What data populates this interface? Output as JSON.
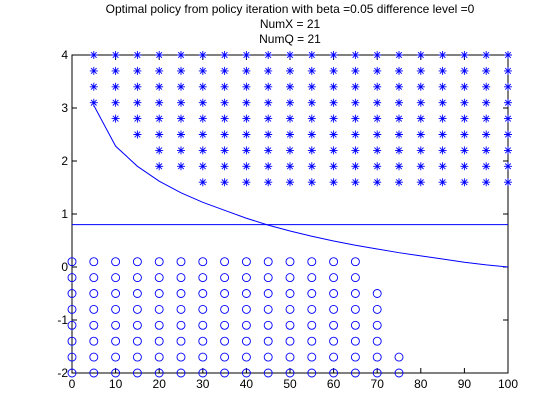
{
  "chart_data": {
    "type": "scatter",
    "title_lines": [
      "Optimal policy from policy iteration with beta =0.05 difference level =0",
      "NumX = 21",
      "NumQ = 21"
    ],
    "xlabel": "",
    "ylabel": "",
    "xlim": [
      0,
      100
    ],
    "ylim": [
      -2,
      4
    ],
    "x_ticks": [
      0,
      10,
      20,
      30,
      40,
      50,
      60,
      70,
      80,
      90,
      100
    ],
    "y_ticks": [
      -2,
      -1,
      0,
      1,
      2,
      3,
      4
    ],
    "grid": false,
    "legend": "none",
    "colors": {
      "series": "#0000ff",
      "axes": "#000000",
      "background": "#ffffff"
    },
    "star_series": {
      "marker": "asterisk",
      "columns": [
        {
          "x": 5,
          "y_min": 3.1,
          "y_max": 4.0
        },
        {
          "x": 10,
          "y_min": 2.8,
          "y_max": 4.0
        },
        {
          "x": 15,
          "y_min": 2.5,
          "y_max": 4.0
        },
        {
          "x": 20,
          "y_min": 1.9,
          "y_max": 4.0
        },
        {
          "x": 25,
          "y_min": 1.9,
          "y_max": 4.0
        },
        {
          "x": 30,
          "y_min": 1.6,
          "y_max": 4.0
        },
        {
          "x": 35,
          "y_min": 1.6,
          "y_max": 4.0
        },
        {
          "x": 40,
          "y_min": 1.6,
          "y_max": 4.0
        },
        {
          "x": 45,
          "y_min": 1.6,
          "y_max": 4.0
        },
        {
          "x": 50,
          "y_min": 1.6,
          "y_max": 4.0
        },
        {
          "x": 55,
          "y_min": 1.6,
          "y_max": 4.0
        },
        {
          "x": 60,
          "y_min": 1.6,
          "y_max": 4.0
        },
        {
          "x": 65,
          "y_min": 1.6,
          "y_max": 4.0
        },
        {
          "x": 70,
          "y_min": 1.6,
          "y_max": 4.0
        },
        {
          "x": 75,
          "y_min": 1.6,
          "y_max": 4.0
        },
        {
          "x": 80,
          "y_min": 1.6,
          "y_max": 4.0
        },
        {
          "x": 85,
          "y_min": 1.6,
          "y_max": 4.0
        },
        {
          "x": 90,
          "y_min": 1.6,
          "y_max": 4.0
        },
        {
          "x": 95,
          "y_min": 1.6,
          "y_max": 4.0
        },
        {
          "x": 100,
          "y_min": 1.6,
          "y_max": 4.0
        }
      ]
    },
    "circle_series": {
      "marker": "circle",
      "columns": [
        {
          "x": 0,
          "y_min": -2.0,
          "y_max": 0.1
        },
        {
          "x": 5,
          "y_min": -2.0,
          "y_max": 0.1
        },
        {
          "x": 10,
          "y_min": -2.0,
          "y_max": 0.1
        },
        {
          "x": 15,
          "y_min": -2.0,
          "y_max": 0.1
        },
        {
          "x": 20,
          "y_min": -2.0,
          "y_max": 0.1
        },
        {
          "x": 25,
          "y_min": -2.0,
          "y_max": 0.1
        },
        {
          "x": 30,
          "y_min": -2.0,
          "y_max": 0.1
        },
        {
          "x": 35,
          "y_min": -2.0,
          "y_max": 0.1
        },
        {
          "x": 40,
          "y_min": -2.0,
          "y_max": 0.1
        },
        {
          "x": 45,
          "y_min": -2.0,
          "y_max": 0.1
        },
        {
          "x": 50,
          "y_min": -2.0,
          "y_max": 0.1
        },
        {
          "x": 55,
          "y_min": -2.0,
          "y_max": 0.1
        },
        {
          "x": 60,
          "y_min": -2.0,
          "y_max": 0.1
        },
        {
          "x": 65,
          "y_min": -2.0,
          "y_max": 0.1
        },
        {
          "x": 70,
          "y_min": -2.0,
          "y_max": -0.5
        },
        {
          "x": 75,
          "y_min": -2.0,
          "y_max": -1.7
        }
      ]
    },
    "y_step": 0.3,
    "curve": {
      "x": [
        5,
        10,
        15,
        20,
        25,
        30,
        35,
        40,
        45,
        50,
        55,
        60,
        65,
        70,
        75,
        80,
        85,
        90,
        95,
        100
      ],
      "y": [
        3.05,
        2.28,
        1.9,
        1.62,
        1.4,
        1.22,
        1.07,
        0.92,
        0.79,
        0.68,
        0.58,
        0.49,
        0.41,
        0.34,
        0.27,
        0.21,
        0.15,
        0.09,
        0.04,
        0.0
      ]
    },
    "hline": {
      "y": 0.8
    }
  }
}
